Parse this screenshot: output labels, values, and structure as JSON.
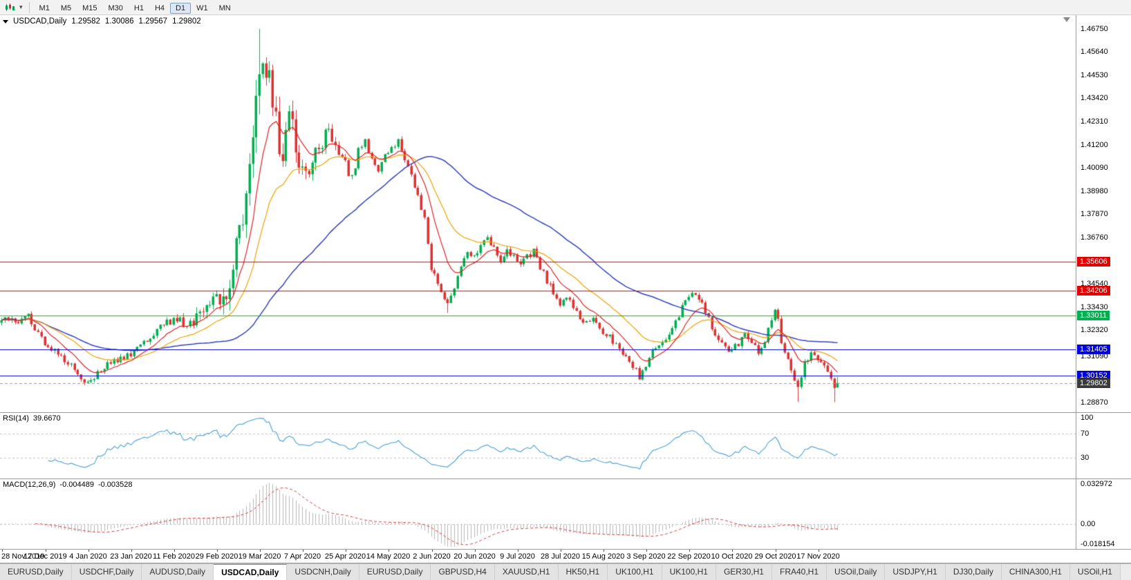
{
  "toolbar": {
    "timeframes": [
      {
        "label": "M1",
        "active": false
      },
      {
        "label": "M5",
        "active": false
      },
      {
        "label": "M15",
        "active": false
      },
      {
        "label": "M30",
        "active": false
      },
      {
        "label": "H1",
        "active": false
      },
      {
        "label": "H4",
        "active": false
      },
      {
        "label": "D1",
        "active": true
      },
      {
        "label": "W1",
        "active": false
      },
      {
        "label": "MN",
        "active": false
      }
    ]
  },
  "chart": {
    "symbol_label": "USDCAD,Daily",
    "ohlc": {
      "open": "1.29582",
      "high": "1.30086",
      "low": "1.29567",
      "close": "1.29802"
    },
    "price_axis": {
      "ticks": [
        "1.46750",
        "1.45640",
        "1.44530",
        "1.43420",
        "1.42310",
        "1.41200",
        "1.40090",
        "1.38980",
        "1.37870",
        "1.36760",
        "1.34540",
        "1.33430",
        "1.32320",
        "1.31090",
        "1.28870"
      ],
      "badges": [
        {
          "value": 1.35606,
          "label": "1.35606",
          "color": "#e00000"
        },
        {
          "value": 1.34206,
          "label": "1.34206",
          "color": "#e00000"
        },
        {
          "value": 1.33011,
          "label": "1.33011",
          "color": "#00b050"
        },
        {
          "value": 1.31405,
          "label": "1.31405",
          "color": "#0000dd"
        },
        {
          "value": 1.30152,
          "label": "1.30152",
          "color": "#0000dd"
        },
        {
          "value": 1.29802,
          "label": "1.29802",
          "color": "#3a3a3a"
        }
      ]
    },
    "hlines": [
      {
        "value": 1.35606,
        "color": "#e00000"
      },
      {
        "value": 1.34206,
        "color": "#e00000"
      },
      {
        "value": 1.33011,
        "color": "#00c000"
      },
      {
        "value": 1.31405,
        "color": "#0000dd"
      },
      {
        "value": 1.30152,
        "color": "#0000dd"
      }
    ],
    "current_price": {
      "value": 1.29802,
      "line_color": "#999999"
    }
  },
  "rsi": {
    "label": "RSI(14)",
    "value": "39.6670",
    "period": 14,
    "line_color": "#53a6d8",
    "level_line_color": "#c0c0c0",
    "levels": [
      70,
      30
    ],
    "axis_labels": [
      {
        "value": 100,
        "label": "100"
      },
      {
        "value": 70,
        "label": "70"
      },
      {
        "value": 30,
        "label": "30"
      }
    ]
  },
  "macd": {
    "label": "MACD(12,26,9)",
    "value": "-0.004489",
    "signal_value": "-0.003528",
    "fast": 12,
    "slow": 26,
    "signal": 9,
    "hist_color": "#b4b4b4",
    "signal_color": "#d83838",
    "zero_line_color": "#c0c0c0",
    "range": [
      -0.018154,
      0.032972
    ],
    "axis_labels": [
      {
        "value": 0.032972,
        "label": "0.032972"
      },
      {
        "value": 0,
        "label": "0.00"
      },
      {
        "value": -0.018154,
        "label": "-0.018154"
      }
    ]
  },
  "time_axis": {
    "labels": [
      {
        "idx": 0,
        "label": "28 Nov 2019"
      },
      {
        "idx": 13,
        "label": "17 Dec 2019"
      },
      {
        "idx": 26,
        "label": "4 Jan 2020"
      },
      {
        "idx": 39,
        "label": "23 Jan 2020"
      },
      {
        "idx": 52,
        "label": "11 Feb 2020"
      },
      {
        "idx": 65,
        "label": "29 Feb 2020"
      },
      {
        "idx": 78,
        "label": "19 Mar 2020"
      },
      {
        "idx": 91,
        "label": "7 Apr 2020"
      },
      {
        "idx": 104,
        "label": "25 Apr 2020"
      },
      {
        "idx": 117,
        "label": "14 May 2020"
      },
      {
        "idx": 130,
        "label": "2 Jun 2020"
      },
      {
        "idx": 143,
        "label": "20 Jun 2020"
      },
      {
        "idx": 156,
        "label": "9 Jul 2020"
      },
      {
        "idx": 169,
        "label": "28 Jul 2020"
      },
      {
        "idx": 182,
        "label": "15 Aug 2020"
      },
      {
        "idx": 195,
        "label": "3 Sep 2020"
      },
      {
        "idx": 208,
        "label": "22 Sep 2020"
      },
      {
        "idx": 221,
        "label": "10 Oct 2020"
      },
      {
        "idx": 234,
        "label": "29 Oct 2020"
      },
      {
        "idx": 247,
        "label": "17 Nov 2020"
      }
    ]
  },
  "tabs": [
    {
      "label": "EURUSD,Daily",
      "active": false
    },
    {
      "label": "USDCHF,Daily",
      "active": false
    },
    {
      "label": "AUDUSD,Daily",
      "active": false
    },
    {
      "label": "USDCAD,Daily",
      "active": true
    },
    {
      "label": "USDCNH,Daily",
      "active": false
    },
    {
      "label": "EURUSD,Daily",
      "active": false
    },
    {
      "label": "GBPUSD,H4",
      "active": false
    },
    {
      "label": "XAUUSD,H1",
      "active": false
    },
    {
      "label": "HK50,H1",
      "active": false
    },
    {
      "label": "UK100,H1",
      "active": false
    },
    {
      "label": "UK100,H1",
      "active": false
    },
    {
      "label": "GER30,H1",
      "active": false
    },
    {
      "label": "FRA40,H1",
      "active": false
    },
    {
      "label": "USOil,Daily",
      "active": false
    },
    {
      "label": "USDJPY,H1",
      "active": false
    },
    {
      "label": "DJ30,Daily",
      "active": false
    },
    {
      "label": "CHINA300,H1",
      "active": false
    },
    {
      "label": "USOil,H1",
      "active": false
    }
  ],
  "chart_data": {
    "type": "candlestick",
    "symbol": "USDCAD",
    "timeframe": "Daily",
    "bars": 254,
    "price_range": {
      "min": 1.284,
      "max": 1.474
    },
    "right_margin_fraction": 0.22,
    "up_color": "#00b050",
    "down_color": "#e03030",
    "year_high": 1.4675,
    "last_bar_ohlc": {
      "open": 1.29582,
      "high": 1.30086,
      "low": 1.29567,
      "close": 1.29802
    },
    "moving_averages": [
      {
        "name": "slow",
        "type": "sma",
        "period": 60,
        "color": "#3040c0",
        "width": 1.5
      },
      {
        "name": "medium",
        "type": "ema",
        "period": 25,
        "color": "#f0a000",
        "width": 1.2
      },
      {
        "name": "fast",
        "type": "ema",
        "period": 10,
        "color": "#e02020",
        "width": 1.2
      }
    ],
    "feature_wicks": [
      {
        "idx": 78,
        "high": 1.4675
      },
      {
        "idx": 135,
        "low": 1.3315
      },
      {
        "idx": 241,
        "low": 1.289
      },
      {
        "idx": 252,
        "low": 1.2888
      }
    ],
    "close_anchors": [
      [
        0,
        1.329
      ],
      [
        4,
        1.3268
      ],
      [
        8,
        1.3298
      ],
      [
        13,
        1.317
      ],
      [
        17,
        1.3115
      ],
      [
        21,
        1.306
      ],
      [
        25,
        1.2968
      ],
      [
        27,
        1.2992
      ],
      [
        30,
        1.305
      ],
      [
        34,
        1.3082
      ],
      [
        38,
        1.311
      ],
      [
        42,
        1.316
      ],
      [
        46,
        1.3222
      ],
      [
        50,
        1.3268
      ],
      [
        53,
        1.3292
      ],
      [
        56,
        1.3252
      ],
      [
        60,
        1.3302
      ],
      [
        63,
        1.3352
      ],
      [
        65,
        1.34
      ],
      [
        67,
        1.3382
      ],
      [
        69,
        1.342
      ],
      [
        71,
        1.366
      ],
      [
        73,
        1.3752
      ],
      [
        75,
        1.399
      ],
      [
        77,
        1.435
      ],
      [
        78,
        1.448
      ],
      [
        79,
        1.456
      ],
      [
        80,
        1.442
      ],
      [
        81,
        1.4488
      ],
      [
        82,
        1.433
      ],
      [
        83,
        1.423
      ],
      [
        84,
        1.4122
      ],
      [
        85,
        1.4032
      ],
      [
        86,
        1.415
      ],
      [
        87,
        1.4258
      ],
      [
        88,
        1.421
      ],
      [
        89,
        1.41
      ],
      [
        90,
        1.4052
      ],
      [
        91,
        1.402
      ],
      [
        93,
        1.3982
      ],
      [
        95,
        1.408
      ],
      [
        97,
        1.4122
      ],
      [
        99,
        1.4208
      ],
      [
        100,
        1.415
      ],
      [
        102,
        1.408
      ],
      [
        104,
        1.4022
      ],
      [
        106,
        1.3962
      ],
      [
        108,
        1.409
      ],
      [
        110,
        1.4128
      ],
      [
        112,
        1.405
      ],
      [
        114,
        1.3982
      ],
      [
        116,
        1.406
      ],
      [
        118,
        1.411
      ],
      [
        120,
        1.4138
      ],
      [
        122,
        1.405
      ],
      [
        124,
        1.3962
      ],
      [
        126,
        1.388
      ],
      [
        128,
        1.3762
      ],
      [
        130,
        1.353
      ],
      [
        132,
        1.346
      ],
      [
        134,
        1.3392
      ],
      [
        135,
        1.3372
      ],
      [
        137,
        1.343
      ],
      [
        139,
        1.355
      ],
      [
        141,
        1.3608
      ],
      [
        143,
        1.3582
      ],
      [
        145,
        1.363
      ],
      [
        147,
        1.3678
      ],
      [
        149,
        1.3622
      ],
      [
        151,
        1.3572
      ],
      [
        153,
        1.3618
      ],
      [
        155,
        1.359
      ],
      [
        157,
        1.3542
      ],
      [
        159,
        1.358
      ],
      [
        161,
        1.3608
      ],
      [
        163,
        1.3532
      ],
      [
        165,
        1.347
      ],
      [
        167,
        1.3412
      ],
      [
        169,
        1.3362
      ],
      [
        171,
        1.34
      ],
      [
        173,
        1.3332
      ],
      [
        175,
        1.33
      ],
      [
        177,
        1.3262
      ],
      [
        179,
        1.329
      ],
      [
        181,
        1.3242
      ],
      [
        183,
        1.321
      ],
      [
        185,
        1.3182
      ],
      [
        187,
        1.315
      ],
      [
        189,
        1.31
      ],
      [
        191,
        1.3062
      ],
      [
        193,
        1.301
      ],
      [
        195,
        1.3072
      ],
      [
        197,
        1.313
      ],
      [
        199,
        1.3162
      ],
      [
        201,
        1.319
      ],
      [
        203,
        1.3242
      ],
      [
        205,
        1.331
      ],
      [
        207,
        1.3372
      ],
      [
        209,
        1.34
      ],
      [
        211,
        1.3392
      ],
      [
        213,
        1.333
      ],
      [
        215,
        1.3252
      ],
      [
        217,
        1.319
      ],
      [
        219,
        1.3152
      ],
      [
        221,
        1.313
      ],
      [
        223,
        1.3172
      ],
      [
        225,
        1.321
      ],
      [
        227,
        1.3162
      ],
      [
        229,
        1.313
      ],
      [
        231,
        1.319
      ],
      [
        233,
        1.3292
      ],
      [
        234,
        1.333
      ],
      [
        235,
        1.3282
      ],
      [
        236,
        1.318
      ],
      [
        237,
        1.3122
      ],
      [
        239,
        1.3042
      ],
      [
        240,
        1.2982
      ],
      [
        241,
        1.2952
      ],
      [
        242,
        1.3022
      ],
      [
        243,
        1.308
      ],
      [
        245,
        1.3122
      ],
      [
        247,
        1.3092
      ],
      [
        249,
        1.3062
      ],
      [
        251,
        1.3006
      ],
      [
        252,
        1.2958
      ],
      [
        253,
        1.298
      ]
    ]
  }
}
